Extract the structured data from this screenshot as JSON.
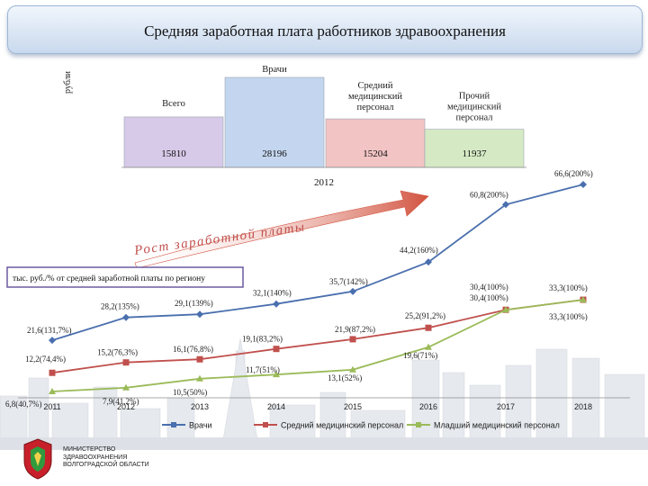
{
  "header": {
    "title": "Средняя заработная плата работников здравоохранения"
  },
  "ministry": {
    "lines": [
      "МИНИСТЕРСТВО",
      "ЗДРАВООХРАНЕНИЯ",
      "ВОЛГОГРАДСКОЙ ОБЛАСТИ"
    ]
  },
  "colors": {
    "doctors": "#4a6fae",
    "mid": "#c0504d",
    "junior": "#9bbb59",
    "arrow": "#d2533f"
  },
  "chart_data": [
    {
      "type": "bar",
      "unit_label": "рубли",
      "xlabel": "2012",
      "categories": [
        "Всего",
        "Врачи",
        "Средний медицинский персонал",
        "Прочий медицинский персонал"
      ],
      "category_lines": [
        [
          "Всего"
        ],
        [
          "Врачи"
        ],
        [
          "Средний",
          "медицинский",
          "персонал"
        ],
        [
          "Прочий",
          "медицинский",
          "персонал"
        ]
      ],
      "values": [
        15810,
        28196,
        15204,
        11937
      ],
      "value_labels": [
        "15810",
        "28196",
        "15204",
        "11937"
      ],
      "colors": [
        "#d7c9e8",
        "#c4d6ef",
        "#f2c4c4",
        "#d5eac4"
      ]
    },
    {
      "type": "line",
      "title": "Рост заработной платы",
      "legend_box": "тыс. руб./% от средней заработной платы по региону",
      "x": [
        "2011",
        "2012",
        "2013",
        "2014",
        "2015",
        "2016",
        "2017",
        "2018"
      ],
      "series": [
        {
          "name": "Врачи",
          "values": [
            21.6,
            28.2,
            29.1,
            32.1,
            35.7,
            44.2,
            60.8,
            66.6
          ],
          "labels": [
            "21,6(131,7%)",
            "28,2(135%)",
            "29,1(139%)",
            "32,1(140%)",
            "35,7(142%)",
            "44,2(160%)",
            "60,8(200%)",
            "66,6(200%)"
          ]
        },
        {
          "name": "Средний медицинский персонал",
          "values": [
            12.2,
            15.2,
            16.1,
            19.1,
            21.9,
            25.2,
            30.4,
            33.3
          ],
          "labels": [
            "12,2(74,4%)",
            "15,2(76,3%)",
            "16,1(76,8%)",
            "19,1(83,2%)",
            "21,9(87,2%)",
            "25,2(91,2%)",
            "30,4(100%)",
            "33,3(100%)"
          ]
        },
        {
          "name": "Младший медицинский персонал",
          "values": [
            6.8,
            7.9,
            10.5,
            11.7,
            13.1,
            19.6,
            30.4,
            33.3
          ],
          "labels": [
            "6,8(40,7%)",
            "7,9(41,2%)",
            "10,5(50%)",
            "11,7(51%)",
            "13,1(52%)",
            "19,6(71%)",
            "30,4(100%)",
            "33,3(100%)"
          ]
        }
      ]
    }
  ]
}
